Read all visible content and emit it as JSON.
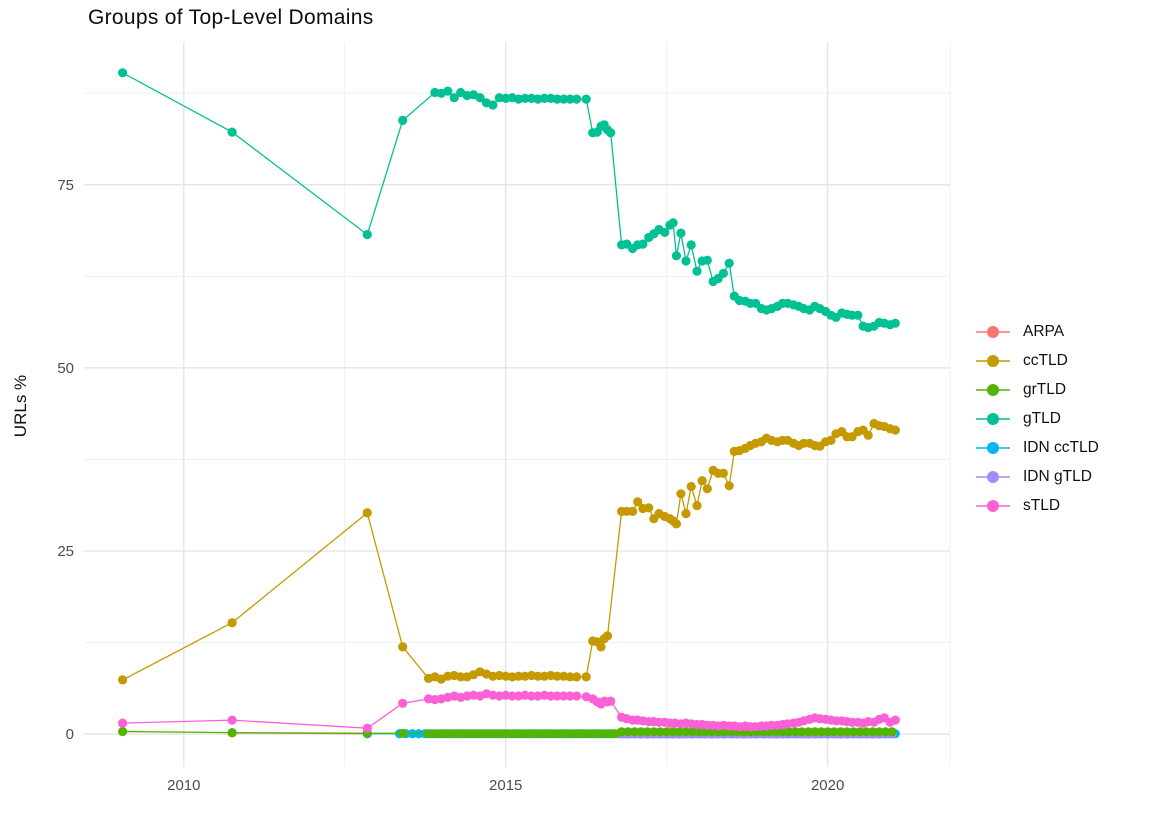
{
  "page": {
    "background": "#ffffff"
  },
  "axis": {
    "tick_color": "#4d4d4d",
    "grid_major_color": "#e3e3e3",
    "grid_minor_color": "#f0f0f0"
  },
  "chart_data": {
    "type": "scatter",
    "title": "Groups of Top-Level Domains",
    "xlabel": "",
    "ylabel": "URLs %",
    "x_ticks": [
      2010,
      2015,
      2020
    ],
    "x_minor_ticks": [
      2012.5,
      2017.5
    ],
    "y_ticks": [
      0,
      25,
      50,
      75
    ],
    "y_minor_ticks": [
      12.5,
      37.5,
      62.5,
      87.5
    ],
    "x_range": [
      2008.45,
      2021.9
    ],
    "y_range": [
      -4.5,
      94.5
    ],
    "grid": true,
    "legend_position": "right",
    "draw_order": [
      "ARPA",
      "ccTLD",
      "IDN ccTLD",
      "IDN gTLD",
      "gTLD",
      "grTLD",
      "sTLD"
    ],
    "series": [
      {
        "name": "ARPA",
        "color": "#F8766D",
        "points": [
          [
            2010.75,
            0.15
          ],
          [
            2012.85,
            0.05
          ]
        ]
      },
      {
        "name": "ccTLD",
        "color": "#C49A00",
        "points": [
          [
            2009.05,
            7.4
          ],
          [
            2010.75,
            15.2
          ],
          [
            2012.85,
            30.2
          ],
          [
            2013.4,
            11.9
          ],
          [
            2013.8,
            7.6
          ],
          [
            2013.9,
            7.8
          ],
          [
            2014,
            7.5
          ],
          [
            2014.1,
            7.9
          ],
          [
            2014.2,
            8
          ],
          [
            2014.3,
            7.8
          ],
          [
            2014.4,
            7.8
          ],
          [
            2014.5,
            8.1
          ],
          [
            2014.6,
            8.5
          ],
          [
            2014.7,
            8.2
          ],
          [
            2014.8,
            7.9
          ],
          [
            2014.9,
            8
          ],
          [
            2015,
            7.9
          ],
          [
            2015.1,
            7.8
          ],
          [
            2015.2,
            7.9
          ],
          [
            2015.3,
            7.9
          ],
          [
            2015.4,
            8
          ],
          [
            2015.5,
            7.9
          ],
          [
            2015.6,
            7.9
          ],
          [
            2015.7,
            8
          ],
          [
            2015.8,
            7.9
          ],
          [
            2015.9,
            7.9
          ],
          [
            2016,
            7.8
          ],
          [
            2016.1,
            7.8
          ],
          [
            2016.25,
            7.8
          ],
          [
            2016.35,
            12.7
          ],
          [
            2016.42,
            12.6
          ],
          [
            2016.48,
            11.9
          ],
          [
            2016.53,
            13
          ],
          [
            2016.58,
            13.4
          ],
          [
            2016.8,
            30.4
          ],
          [
            2016.88,
            30.4
          ],
          [
            2016.97,
            30.4
          ],
          [
            2017.05,
            31.7
          ],
          [
            2017.13,
            30.8
          ],
          [
            2017.22,
            30.9
          ],
          [
            2017.3,
            29.4
          ],
          [
            2017.38,
            30.1
          ],
          [
            2017.47,
            29.7
          ],
          [
            2017.55,
            29.4
          ],
          [
            2017.6,
            29.1
          ],
          [
            2017.65,
            28.7
          ],
          [
            2017.72,
            32.8
          ],
          [
            2017.8,
            30.1
          ],
          [
            2017.88,
            33.8
          ],
          [
            2017.97,
            31.2
          ],
          [
            2018.05,
            34.6
          ],
          [
            2018.13,
            33.5
          ],
          [
            2018.22,
            36
          ],
          [
            2018.3,
            35.6
          ],
          [
            2018.38,
            35.6
          ],
          [
            2018.47,
            33.9
          ],
          [
            2018.55,
            38.6
          ],
          [
            2018.63,
            38.7
          ],
          [
            2018.72,
            39
          ],
          [
            2018.8,
            39.4
          ],
          [
            2018.88,
            39.7
          ],
          [
            2018.97,
            39.9
          ],
          [
            2019.05,
            40.4
          ],
          [
            2019.13,
            40.1
          ],
          [
            2019.22,
            39.9
          ],
          [
            2019.3,
            40.1
          ],
          [
            2019.38,
            40.1
          ],
          [
            2019.47,
            39.7
          ],
          [
            2019.55,
            39.4
          ],
          [
            2019.63,
            39.7
          ],
          [
            2019.72,
            39.7
          ],
          [
            2019.8,
            39.4
          ],
          [
            2019.88,
            39.3
          ],
          [
            2019.97,
            39.9
          ],
          [
            2020.05,
            40.1
          ],
          [
            2020.13,
            41
          ],
          [
            2020.22,
            41.3
          ],
          [
            2020.3,
            40.6
          ],
          [
            2020.38,
            40.6
          ],
          [
            2020.47,
            41.3
          ],
          [
            2020.55,
            41.5
          ],
          [
            2020.63,
            40.8
          ],
          [
            2020.72,
            42.4
          ],
          [
            2020.8,
            42.1
          ],
          [
            2020.88,
            42
          ],
          [
            2020.97,
            41.7
          ],
          [
            2021.05,
            41.5
          ]
        ]
      },
      {
        "name": "grTLD",
        "color": "#53B400",
        "points": [
          [
            2009.05,
            0.35
          ],
          [
            2010.75,
            0.2
          ],
          [
            2012.85,
            0.1
          ],
          [
            2013.4,
            0.1
          ]
        ],
        "segments": [
          {
            "start": 2013.8,
            "end": 2016.7,
            "step": 0.1,
            "value": 0.05
          },
          {
            "start": 2016.8,
            "end": 2021.05,
            "step": 0.1,
            "value": 0.3
          }
        ]
      },
      {
        "name": "gTLD",
        "color": "#00C094",
        "points": [
          [
            2009.05,
            90.3
          ],
          [
            2010.75,
            82.2
          ],
          [
            2012.85,
            68.2
          ],
          [
            2013.4,
            83.8
          ],
          [
            2013.9,
            87.6
          ],
          [
            2014,
            87.5
          ],
          [
            2014.1,
            87.8
          ],
          [
            2014.2,
            86.9
          ],
          [
            2014.3,
            87.6
          ],
          [
            2014.4,
            87.2
          ],
          [
            2014.5,
            87.3
          ],
          [
            2014.6,
            86.9
          ],
          [
            2014.7,
            86.2
          ],
          [
            2014.8,
            85.9
          ],
          [
            2014.9,
            86.9
          ],
          [
            2015,
            86.8
          ],
          [
            2015.1,
            86.9
          ],
          [
            2015.2,
            86.7
          ],
          [
            2015.3,
            86.8
          ],
          [
            2015.4,
            86.8
          ],
          [
            2015.5,
            86.7
          ],
          [
            2015.6,
            86.8
          ],
          [
            2015.7,
            86.8
          ],
          [
            2015.8,
            86.7
          ],
          [
            2015.9,
            86.7
          ],
          [
            2016,
            86.7
          ],
          [
            2016.1,
            86.7
          ],
          [
            2016.25,
            86.7
          ],
          [
            2016.35,
            82.1
          ],
          [
            2016.42,
            82.2
          ],
          [
            2016.48,
            83
          ],
          [
            2016.53,
            83.2
          ],
          [
            2016.58,
            82.5
          ],
          [
            2016.63,
            82.1
          ],
          [
            2016.8,
            66.8
          ],
          [
            2016.88,
            66.9
          ],
          [
            2016.97,
            66.3
          ],
          [
            2017.05,
            66.8
          ],
          [
            2017.13,
            66.9
          ],
          [
            2017.22,
            67.8
          ],
          [
            2017.3,
            68.3
          ],
          [
            2017.38,
            68.9
          ],
          [
            2017.47,
            68.5
          ],
          [
            2017.55,
            69.5
          ],
          [
            2017.6,
            69.8
          ],
          [
            2017.65,
            65.3
          ],
          [
            2017.72,
            68.4
          ],
          [
            2017.8,
            64.6
          ],
          [
            2017.88,
            66.8
          ],
          [
            2017.97,
            63.2
          ],
          [
            2018.05,
            64.6
          ],
          [
            2018.13,
            64.7
          ],
          [
            2018.22,
            61.8
          ],
          [
            2018.3,
            62.2
          ],
          [
            2018.38,
            62.9
          ],
          [
            2018.47,
            64.3
          ],
          [
            2018.55,
            59.8
          ],
          [
            2018.63,
            59.2
          ],
          [
            2018.72,
            59.1
          ],
          [
            2018.8,
            58.8
          ],
          [
            2018.88,
            58.8
          ],
          [
            2018.97,
            58.1
          ],
          [
            2019.05,
            57.9
          ],
          [
            2019.13,
            58.1
          ],
          [
            2019.22,
            58.4
          ],
          [
            2019.3,
            58.8
          ],
          [
            2019.38,
            58.8
          ],
          [
            2019.47,
            58.6
          ],
          [
            2019.55,
            58.4
          ],
          [
            2019.63,
            58.1
          ],
          [
            2019.72,
            57.9
          ],
          [
            2019.8,
            58.4
          ],
          [
            2019.88,
            58.1
          ],
          [
            2019.97,
            57.7
          ],
          [
            2020.05,
            57.2
          ],
          [
            2020.13,
            56.9
          ],
          [
            2020.22,
            57.5
          ],
          [
            2020.3,
            57.3
          ],
          [
            2020.38,
            57.2
          ],
          [
            2020.47,
            57.2
          ],
          [
            2020.55,
            55.7
          ],
          [
            2020.63,
            55.5
          ],
          [
            2020.72,
            55.7
          ],
          [
            2020.8,
            56.2
          ],
          [
            2020.88,
            56.1
          ],
          [
            2020.97,
            55.9
          ],
          [
            2021.05,
            56.1
          ]
        ]
      },
      {
        "name": "IDN ccTLD",
        "color": "#00B6EB",
        "points": [
          [
            2012.85,
            0.05
          ]
        ],
        "segments": [
          {
            "start": 2013.35,
            "end": 2021.05,
            "step": 0.1,
            "value": 0.05
          }
        ]
      },
      {
        "name": "IDN gTLD",
        "color": "#A58AFF",
        "points": [],
        "segments": [
          {
            "start": 2016.8,
            "end": 2021.05,
            "step": 0.1,
            "value": 0
          }
        ]
      },
      {
        "name": "sTLD",
        "color": "#FB61D7",
        "points": [
          [
            2009.05,
            1.5
          ],
          [
            2010.75,
            1.9
          ],
          [
            2012.85,
            0.8
          ],
          [
            2013.4,
            4.2
          ],
          [
            2013.8,
            4.8
          ],
          [
            2013.9,
            4.7
          ],
          [
            2014,
            4.8
          ],
          [
            2014.1,
            5
          ],
          [
            2014.2,
            5.2
          ],
          [
            2014.3,
            5
          ],
          [
            2014.4,
            5.2
          ],
          [
            2014.5,
            5.3
          ],
          [
            2014.6,
            5.2
          ],
          [
            2014.7,
            5.5
          ],
          [
            2014.8,
            5.3
          ],
          [
            2014.9,
            5.2
          ],
          [
            2015,
            5.3
          ],
          [
            2015.1,
            5.2
          ],
          [
            2015.2,
            5.2
          ],
          [
            2015.3,
            5.3
          ],
          [
            2015.4,
            5.2
          ],
          [
            2015.5,
            5.2
          ],
          [
            2015.6,
            5.3
          ],
          [
            2015.7,
            5.2
          ],
          [
            2015.8,
            5.2
          ],
          [
            2015.9,
            5.2
          ],
          [
            2016,
            5.2
          ],
          [
            2016.1,
            5.2
          ],
          [
            2016.25,
            5.1
          ],
          [
            2016.35,
            4.8
          ],
          [
            2016.42,
            4.4
          ],
          [
            2016.48,
            4.1
          ],
          [
            2016.53,
            4.5
          ],
          [
            2016.58,
            4.4
          ],
          [
            2016.63,
            4.5
          ],
          [
            2016.8,
            2.3
          ],
          [
            2016.88,
            2.1
          ],
          [
            2016.97,
            1.9
          ],
          [
            2017.05,
            1.9
          ],
          [
            2017.13,
            1.8
          ],
          [
            2017.22,
            1.7
          ],
          [
            2017.3,
            1.7
          ],
          [
            2017.38,
            1.6
          ],
          [
            2017.47,
            1.6
          ],
          [
            2017.55,
            1.5
          ],
          [
            2017.63,
            1.5
          ],
          [
            2017.72,
            1.4
          ],
          [
            2017.8,
            1.5
          ],
          [
            2017.88,
            1.4
          ],
          [
            2017.97,
            1.3
          ],
          [
            2018.05,
            1.3
          ],
          [
            2018.13,
            1.2
          ],
          [
            2018.22,
            1.2
          ],
          [
            2018.3,
            1.1
          ],
          [
            2018.38,
            1.2
          ],
          [
            2018.47,
            1.1
          ],
          [
            2018.55,
            1.1
          ],
          [
            2018.63,
            1
          ],
          [
            2018.72,
            1.1
          ],
          [
            2018.8,
            1
          ],
          [
            2018.88,
            1
          ],
          [
            2018.97,
            1.1
          ],
          [
            2019.05,
            1.1
          ],
          [
            2019.13,
            1.2
          ],
          [
            2019.22,
            1.2
          ],
          [
            2019.3,
            1.3
          ],
          [
            2019.38,
            1.4
          ],
          [
            2019.47,
            1.5
          ],
          [
            2019.55,
            1.6
          ],
          [
            2019.63,
            1.8
          ],
          [
            2019.72,
            2
          ],
          [
            2019.8,
            2.2
          ],
          [
            2019.88,
            2.1
          ],
          [
            2019.97,
            2
          ],
          [
            2020.05,
            1.9
          ],
          [
            2020.13,
            1.8
          ],
          [
            2020.22,
            1.8
          ],
          [
            2020.3,
            1.7
          ],
          [
            2020.38,
            1.6
          ],
          [
            2020.47,
            1.6
          ],
          [
            2020.55,
            1.5
          ],
          [
            2020.63,
            1.7
          ],
          [
            2020.72,
            1.6
          ],
          [
            2020.8,
            2
          ],
          [
            2020.88,
            2.2
          ],
          [
            2020.97,
            1.6
          ],
          [
            2021.05,
            1.9
          ]
        ]
      }
    ]
  }
}
